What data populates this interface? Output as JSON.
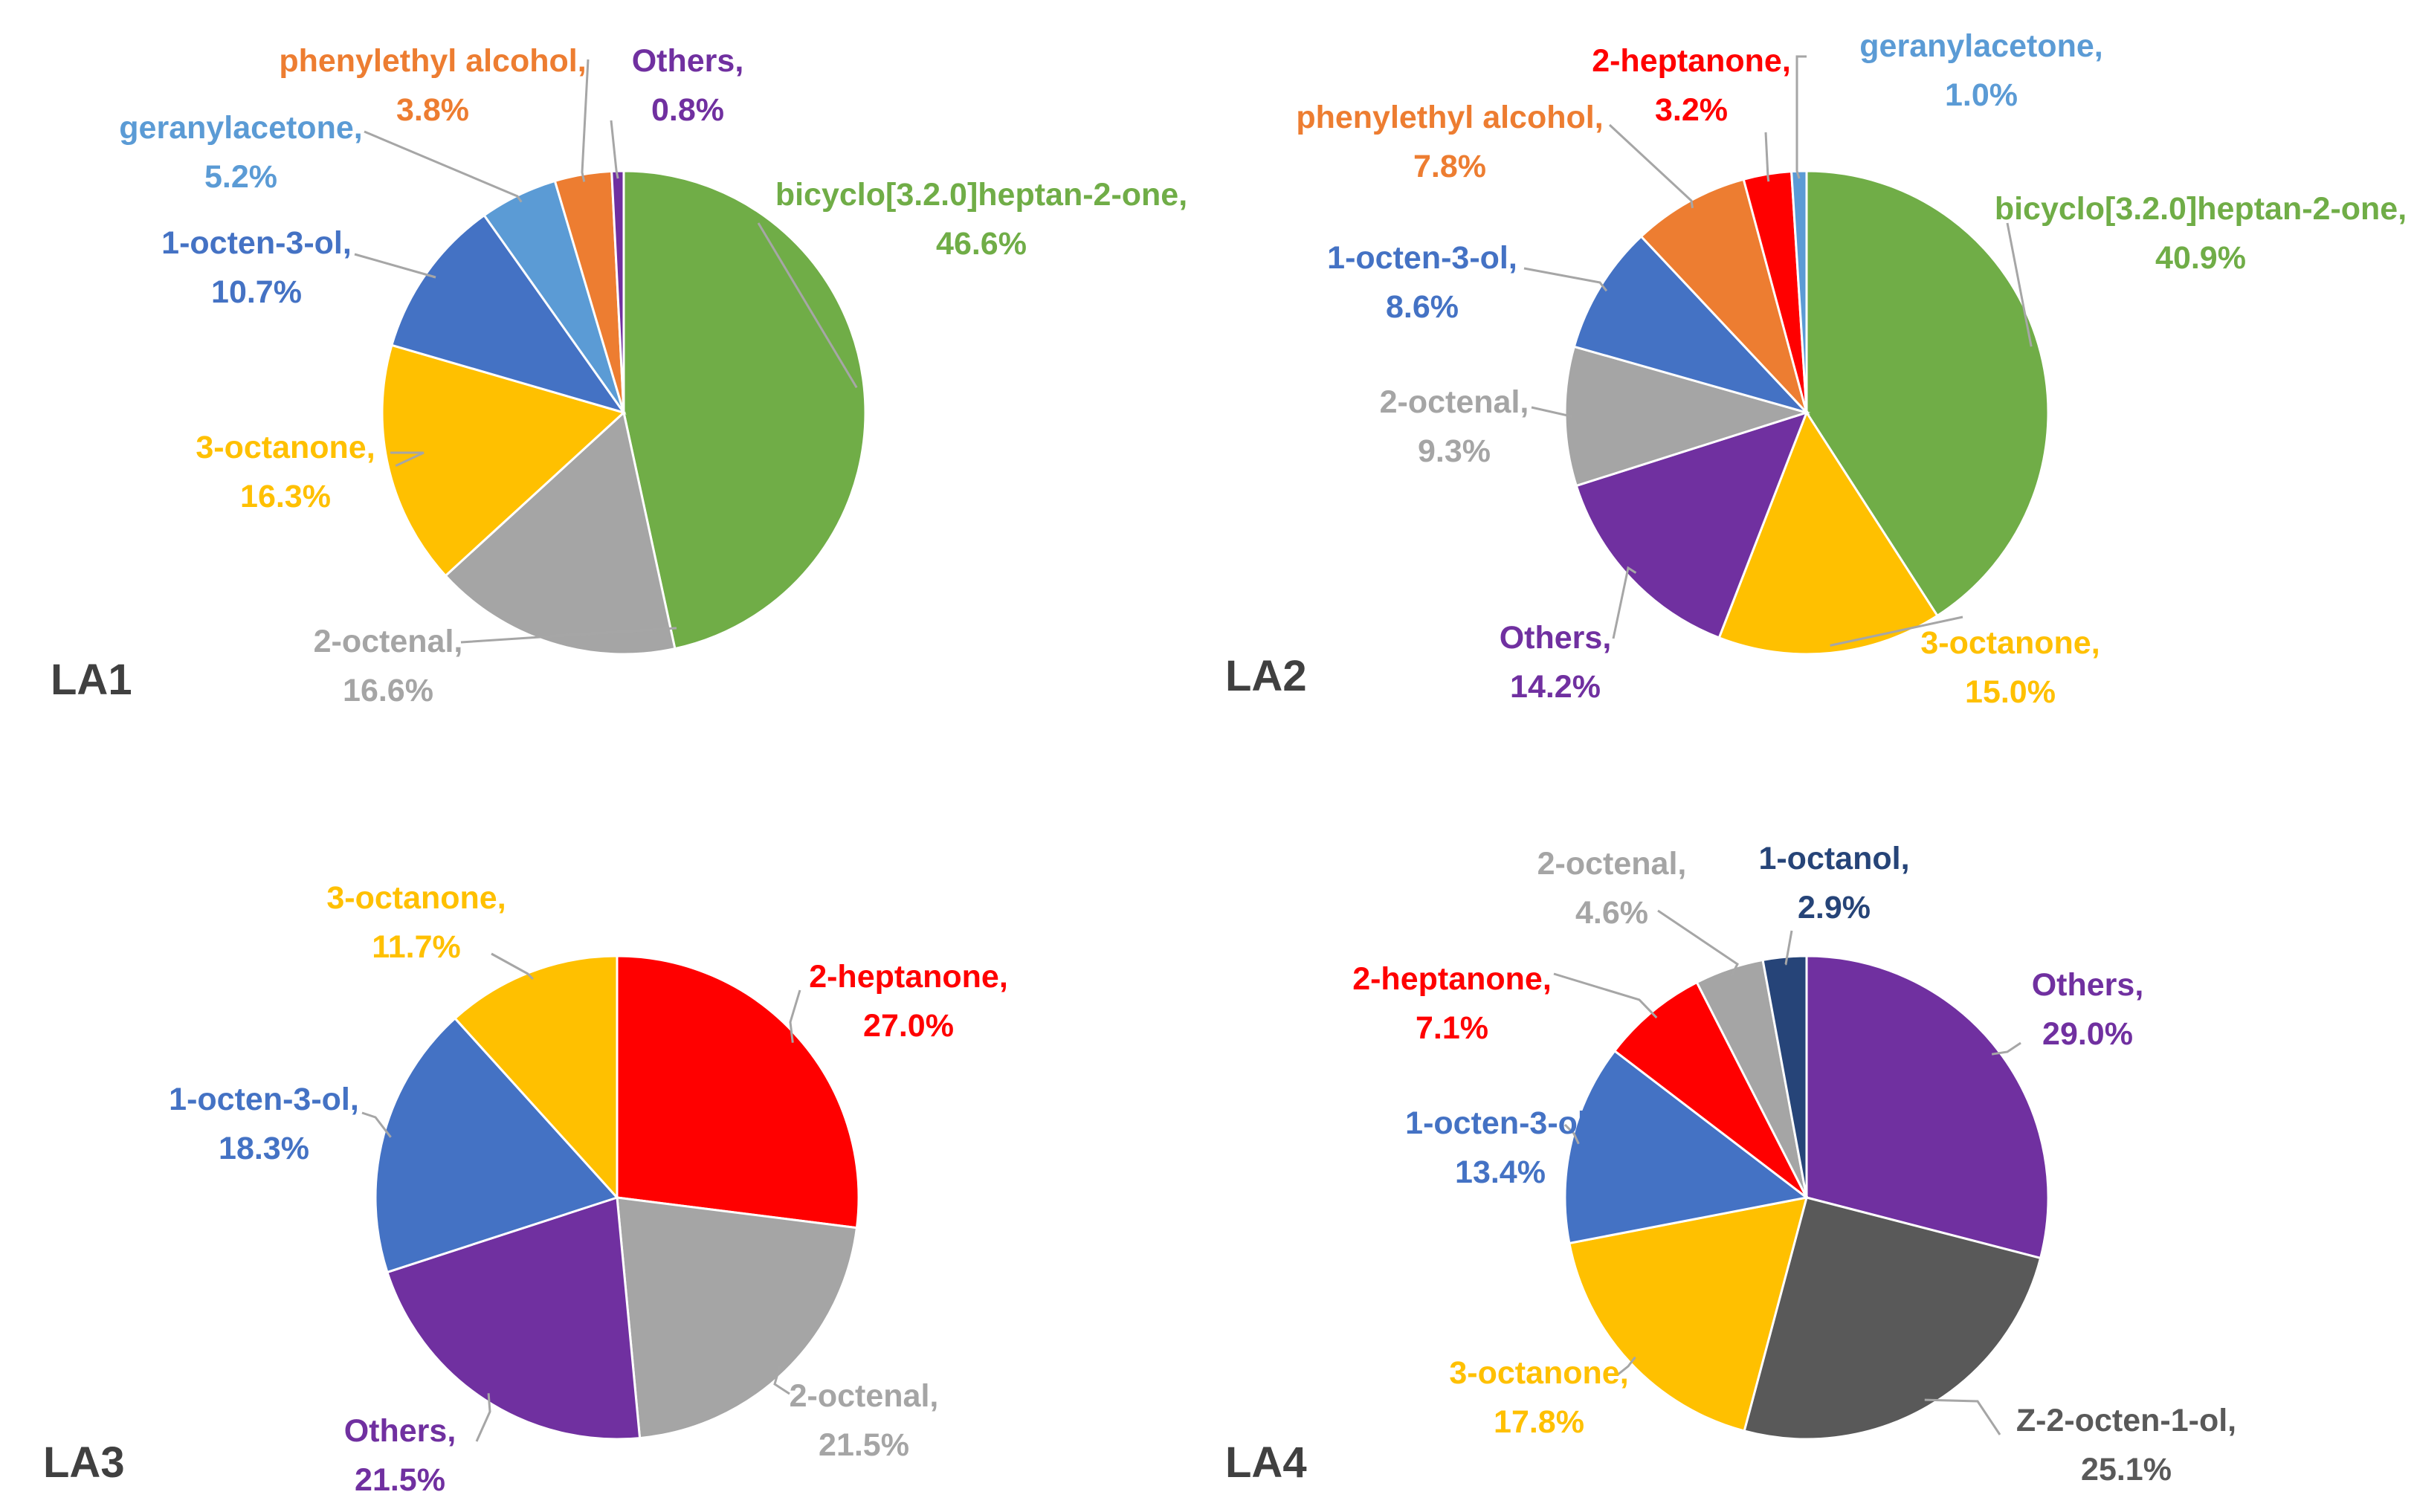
{
  "chart_data": [
    {
      "type": "pie",
      "title": "LA1",
      "slices": [
        {
          "label": "bicyclo[3.2.0]heptan-2-one,",
          "value": 46.6,
          "display": "46.6%",
          "color": "#70ad47"
        },
        {
          "label": "2-octenal,",
          "value": 16.6,
          "display": "16.6%",
          "color": "#a5a5a5"
        },
        {
          "label": "3-octanone,",
          "value": 16.3,
          "display": "16.3%",
          "color": "#ffc000"
        },
        {
          "label": "1-octen-3-ol,",
          "value": 10.7,
          "display": "10.7%",
          "color": "#4472c4"
        },
        {
          "label": "geranylacetone,",
          "value": 5.2,
          "display": "5.2%",
          "color": "#5b9bd5"
        },
        {
          "label": "phenylethyl alcohol,",
          "value": 3.8,
          "display": "3.8%",
          "color": "#ed7d31"
        },
        {
          "label": "Others,",
          "value": 0.8,
          "display": "0.8%",
          "color": "#7030a0"
        }
      ]
    },
    {
      "type": "pie",
      "title": "LA2",
      "slices": [
        {
          "label": "bicyclo[3.2.0]heptan-2-one,",
          "value": 40.9,
          "display": "40.9%",
          "color": "#70ad47"
        },
        {
          "label": "3-octanone,",
          "value": 15.0,
          "display": "15.0%",
          "color": "#ffc000"
        },
        {
          "label": "Others,",
          "value": 14.2,
          "display": "14.2%",
          "color": "#7030a0"
        },
        {
          "label": "2-octenal,",
          "value": 9.3,
          "display": "9.3%",
          "color": "#a5a5a5"
        },
        {
          "label": "1-octen-3-ol,",
          "value": 8.6,
          "display": "8.6%",
          "color": "#4472c4"
        },
        {
          "label": "phenylethyl alcohol,",
          "value": 7.8,
          "display": "7.8%",
          "color": "#ed7d31"
        },
        {
          "label": "2-heptanone,",
          "value": 3.2,
          "display": "3.2%",
          "color": "#ff0000"
        },
        {
          "label": "geranylacetone,",
          "value": 1.0,
          "display": "1.0%",
          "color": "#5b9bd5"
        }
      ]
    },
    {
      "type": "pie",
      "title": "LA3",
      "slices": [
        {
          "label": "2-heptanone,",
          "value": 27.0,
          "display": "27.0%",
          "color": "#ff0000"
        },
        {
          "label": "2-octenal,",
          "value": 21.5,
          "display": "21.5%",
          "color": "#a5a5a5"
        },
        {
          "label": "Others,",
          "value": 21.5,
          "display": "21.5%",
          "color": "#7030a0"
        },
        {
          "label": "1-octen-3-ol,",
          "value": 18.3,
          "display": "18.3%",
          "color": "#4472c4"
        },
        {
          "label": "3-octanone,",
          "value": 11.7,
          "display": "11.7%",
          "color": "#ffc000"
        }
      ]
    },
    {
      "type": "pie",
      "title": "LA4",
      "slices": [
        {
          "label": "Others,",
          "value": 29.0,
          "display": "29.0%",
          "color": "#7030a0"
        },
        {
          "label": "Z-2-octen-1-ol,",
          "value": 25.1,
          "display": "25.1%",
          "color": "#595959"
        },
        {
          "label": "3-octanone,",
          "value": 17.8,
          "display": "17.8%",
          "color": "#ffc000"
        },
        {
          "label": "1-octen-3-ol,",
          "value": 13.4,
          "display": "13.4%",
          "color": "#4472c4"
        },
        {
          "label": "2-heptanone,",
          "value": 7.1,
          "display": "7.1%",
          "color": "#ff0000"
        },
        {
          "label": "2-octenal,",
          "value": 4.6,
          "display": "4.6%",
          "color": "#a5a5a5"
        },
        {
          "label": "1-octanol,",
          "value": 2.9,
          "display": "2.9%",
          "color": "#264478"
        }
      ]
    }
  ]
}
